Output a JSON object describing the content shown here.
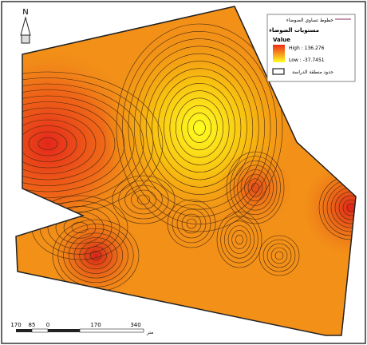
{
  "north_arrow": {
    "label": "N"
  },
  "legend": {
    "line_label": "خطوط تساوي الضوضاء",
    "title": "مستويات الضوضاء",
    "field": "Value",
    "high": "High : 136.276",
    "low": "Low : -37.7451",
    "boundary_label": "حدود منطقة الدراسة"
  },
  "scale_bar": {
    "labels": [
      "170",
      "85",
      "0",
      "170",
      "340"
    ],
    "unit": "متر"
  }
}
